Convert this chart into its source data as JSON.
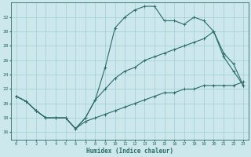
{
  "background_color": "#cce8ec",
  "grid_color": "#a0cdd4",
  "line_color": "#2a6b65",
  "xlabel": "Humidex (Indice chaleur)",
  "xlim": [
    -0.5,
    23.5
  ],
  "ylim": [
    15.0,
    34.0
  ],
  "yticks": [
    16,
    18,
    20,
    22,
    24,
    26,
    28,
    30,
    32
  ],
  "xticks": [
    0,
    1,
    2,
    3,
    4,
    5,
    6,
    7,
    8,
    9,
    10,
    11,
    12,
    13,
    14,
    15,
    16,
    17,
    18,
    19,
    20,
    21,
    22,
    23
  ],
  "line1_x": [
    0,
    1,
    2,
    3,
    4,
    5,
    6,
    7,
    8,
    9,
    10,
    11,
    12,
    13,
    14,
    15,
    16,
    17,
    18,
    19,
    20,
    21,
    22,
    23
  ],
  "line1_y": [
    21.0,
    20.3,
    19.0,
    18.0,
    18.0,
    18.0,
    16.5,
    18.0,
    20.5,
    25.0,
    30.5,
    32.0,
    33.0,
    33.5,
    33.5,
    31.5,
    31.5,
    31.0,
    32.0,
    31.5,
    30.0,
    26.5,
    24.5,
    22.5
  ],
  "line2_x": [
    0,
    1,
    2,
    3,
    4,
    5,
    6,
    7,
    8,
    9,
    10,
    11,
    12,
    13,
    14,
    15,
    16,
    17,
    18,
    19,
    20,
    21,
    22,
    23
  ],
  "line2_y": [
    21.0,
    20.3,
    19.0,
    18.0,
    18.0,
    18.0,
    16.5,
    18.0,
    20.5,
    22.0,
    23.5,
    24.5,
    25.0,
    26.0,
    26.5,
    27.0,
    27.5,
    28.0,
    28.5,
    29.0,
    30.0,
    27.0,
    25.5,
    22.5
  ],
  "line3_x": [
    0,
    1,
    2,
    3,
    4,
    5,
    6,
    7,
    8,
    9,
    10,
    11,
    12,
    13,
    14,
    15,
    16,
    17,
    18,
    19,
    20,
    21,
    22,
    23
  ],
  "line3_y": [
    21.0,
    20.3,
    19.0,
    18.0,
    18.0,
    18.0,
    16.5,
    17.5,
    18.0,
    18.5,
    19.0,
    19.5,
    20.0,
    20.5,
    21.0,
    21.5,
    21.5,
    22.0,
    22.0,
    22.5,
    22.5,
    22.5,
    22.5,
    23.0
  ]
}
